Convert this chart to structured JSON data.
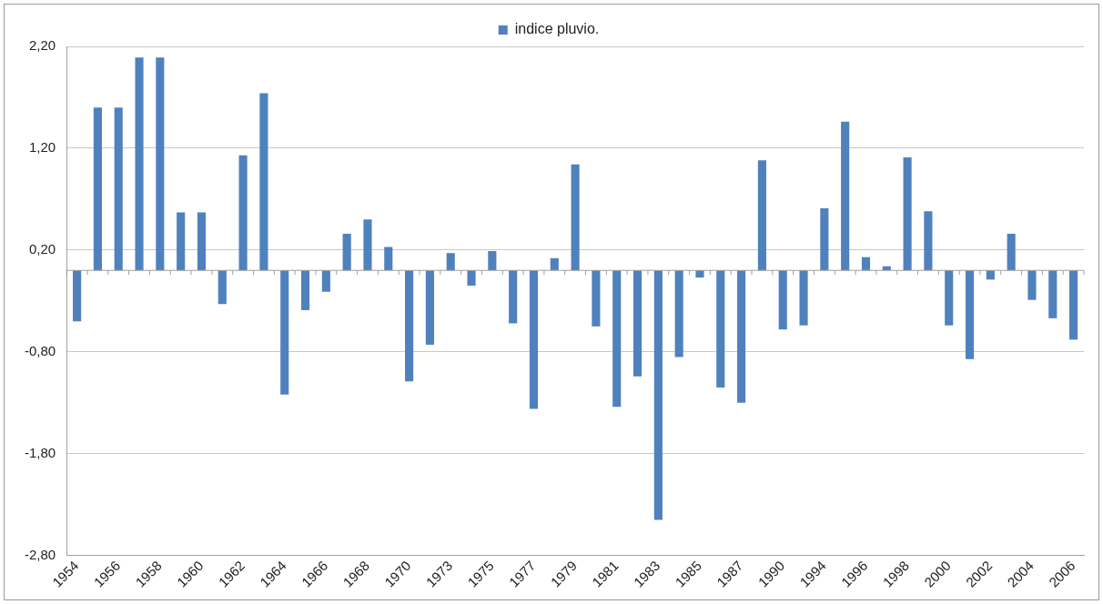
{
  "chart_data": {
    "type": "bar",
    "categories": [
      "1954",
      null,
      "1956",
      null,
      "1958",
      null,
      "1960",
      null,
      "1962",
      null,
      "1964",
      null,
      "1966",
      null,
      "1968",
      null,
      "1970",
      null,
      "1973",
      null,
      "1975",
      null,
      "1977",
      null,
      "1979",
      null,
      "1981",
      null,
      "1983",
      null,
      "1985",
      null,
      "1987",
      null,
      "1990",
      null,
      "1994",
      null,
      "1996",
      null,
      "1998",
      null,
      "2000",
      null,
      "2002",
      null,
      "2004",
      null,
      "2006"
    ],
    "series": [
      {
        "name": "indice pluvio.",
        "color": "#4f81bd",
        "values": [
          -0.5,
          1.6,
          1.6,
          2.09,
          2.09,
          0.57,
          0.57,
          -0.33,
          1.13,
          1.74,
          -1.22,
          -0.39,
          -0.21,
          0.36,
          0.5,
          0.23,
          -1.09,
          -0.73,
          0.17,
          -0.15,
          0.19,
          -0.52,
          -1.36,
          0.12,
          1.04,
          -0.55,
          -1.34,
          -1.04,
          -2.45,
          -0.85,
          -0.07,
          -1.15,
          -1.3,
          1.08,
          -0.58,
          -0.54,
          0.61,
          1.46,
          0.13,
          0.04,
          1.11,
          0.58,
          -0.54,
          -0.87,
          -0.09,
          0.36,
          -0.29,
          -0.47,
          -0.68
        ]
      }
    ],
    "ylim": [
      -2.8,
      2.2
    ],
    "yticks": [
      {
        "value": 2.2,
        "label": "2,20"
      },
      {
        "value": 1.2,
        "label": "1,20"
      },
      {
        "value": 0.2,
        "label": "0,20"
      },
      {
        "value": -0.8,
        "label": "-0,80"
      },
      {
        "value": -1.8,
        "label": "-1,80"
      },
      {
        "value": -2.8,
        "label": "-2,80"
      }
    ],
    "grid": "y",
    "legend": "top"
  }
}
